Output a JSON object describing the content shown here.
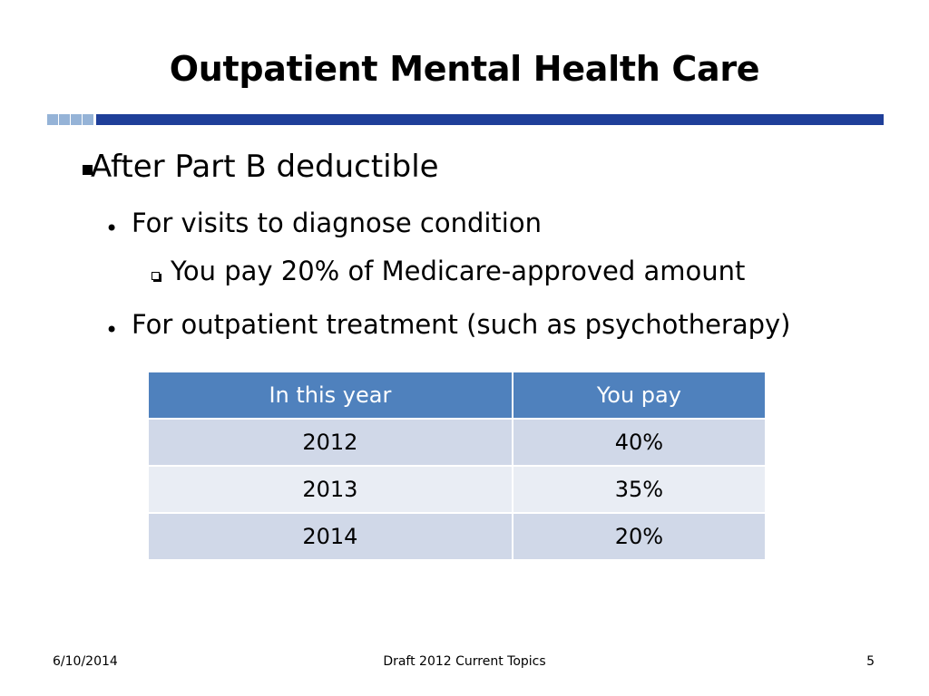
{
  "slide": {
    "title": "Outpatient Mental Health Care",
    "bullets": {
      "level1": "After Part B deductible",
      "visits": "For visits to diagnose condition",
      "visits_sub": "You pay 20% of Medicare-approved amount",
      "treatment": "For outpatient treatment (such as psychotherapy)"
    },
    "table": {
      "headers": [
        "In this year",
        "You pay"
      ],
      "rows": [
        [
          "2012",
          "40%"
        ],
        [
          "2013",
          "35%"
        ],
        [
          "2014",
          "20%"
        ]
      ]
    }
  },
  "footer": {
    "date": "6/10/2014",
    "center": "Draft 2012 Current Topics",
    "page_number": "5"
  },
  "colors": {
    "rule_bar": "#1f3f99",
    "rule_squares": "#95b3d7",
    "table_header": "#4f81bd",
    "table_row_odd": "#d0d8e8",
    "table_row_even": "#e9edf4"
  }
}
